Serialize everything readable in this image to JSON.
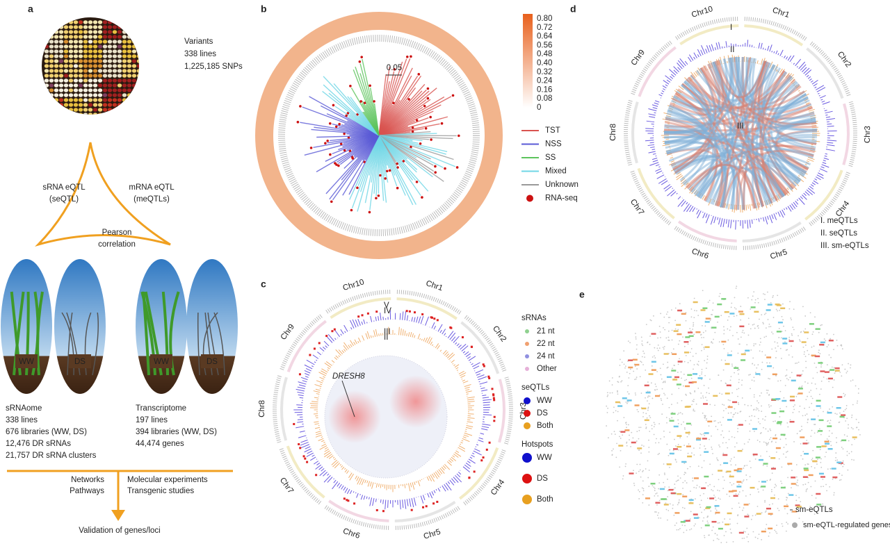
{
  "panel_a": {
    "label": "a",
    "variants": [
      "Variants",
      "338 lines",
      "1,225,185 SNPs"
    ],
    "seqtl": [
      "sRNA eQTL",
      "(seQTL)"
    ],
    "meqtl": [
      "mRNA eQTL",
      "(meQTLs)"
    ],
    "pearson": [
      "Pearson",
      "correlation"
    ],
    "conditions": [
      "WW",
      "DS",
      "WW",
      "DS"
    ],
    "srnaome": [
      "sRNAome",
      "338 lines",
      "676 libraries (WW, DS)",
      "12,476 DR sRNAs",
      "21,757 DR sRNA clusters"
    ],
    "transcriptome": [
      "Transcriptome",
      "197 lines",
      "394 libraries (WW, DS)",
      "44,474 genes"
    ],
    "left_methods": [
      "Networks",
      "Pathways"
    ],
    "right_methods": [
      "Molecular experiments",
      "Transgenic studies"
    ],
    "validation": "Validation of genes/loci"
  },
  "panel_b": {
    "label": "b",
    "colorbar": [
      "0.80",
      "0.72",
      "0.64",
      "0.56",
      "0.48",
      "0.40",
      "0.32",
      "0.24",
      "0.16",
      "0.08",
      "0"
    ],
    "scale": "0.05",
    "legend": [
      {
        "name": "TST",
        "color": "#d9534f"
      },
      {
        "name": "NSS",
        "color": "#5a5ad6"
      },
      {
        "name": "SS",
        "color": "#5cc45c"
      },
      {
        "name": "Mixed",
        "color": "#6fd6e6"
      },
      {
        "name": "Unknown",
        "color": "#999999"
      },
      {
        "name": "RNA-seq",
        "color": "#cc1111"
      }
    ]
  },
  "panel_c": {
    "label": "c",
    "chromosomes": [
      "Chr1",
      "Chr2",
      "Chr3",
      "Chr4",
      "Chr5",
      "Chr6",
      "Chr7",
      "Chr8",
      "Chr9",
      "Chr10"
    ],
    "rings": [
      "V",
      "IV",
      "III",
      "II"
    ],
    "gene": "DRESH8",
    "srnas": {
      "title": "sRNAs",
      "items": [
        {
          "name": "21 nt",
          "color": "#8fd18f"
        },
        {
          "name": "22 nt",
          "color": "#f0a070"
        },
        {
          "name": "24 nt",
          "color": "#9090e0"
        },
        {
          "name": "Other",
          "color": "#e6b0d8"
        }
      ]
    },
    "seqtls": {
      "title": "seQTLs",
      "items": [
        {
          "name": "WW",
          "color": "#1010cc"
        },
        {
          "name": "DS",
          "color": "#dd1111"
        },
        {
          "name": "Both",
          "color": "#e8a020"
        }
      ]
    },
    "hotspots": {
      "title": "Hotspots",
      "items": [
        {
          "name": "WW",
          "color": "#1010cc"
        },
        {
          "name": "DS",
          "color": "#dd1111"
        },
        {
          "name": "Both",
          "color": "#e8a020"
        }
      ]
    }
  },
  "panel_d": {
    "label": "d",
    "chromosomes": [
      "Chr1",
      "Chr2",
      "Chr3",
      "Chr4",
      "Chr5",
      "Chr6",
      "Chr7",
      "Chr8",
      "Chr9",
      "Chr10"
    ],
    "rings": [
      "I",
      "II",
      "III"
    ],
    "legend": [
      "I. meQTLs",
      "II. seQTLs",
      "III. sm-eQTLs"
    ]
  },
  "panel_e": {
    "label": "e",
    "legend": [
      {
        "name": "sm-eQTLs",
        "color": "#888888"
      },
      {
        "name": "sm-eQTL-regulated genes",
        "color": "#aaaaaa"
      }
    ]
  }
}
